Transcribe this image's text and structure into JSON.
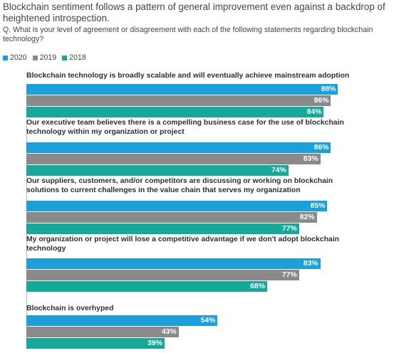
{
  "colors": {
    "2020": "#1ba0db",
    "2019": "#8a8a8a",
    "2018": "#16a99a"
  },
  "chart_data": {
    "type": "bar",
    "orientation": "horizontal",
    "title": "Blockchain sentiment follows a pattern of general improvement even against a backdrop of heightened introspection.",
    "subtitle": "Q. What is your level of agreement or disagreement with each of the following statements regarding blockchain technology?",
    "legend_position": "top-left",
    "unit": "%",
    "xlim": [
      0,
      100
    ],
    "categories": [
      "Blockchain technology is broadly scalable and will eventually achieve mainstream adoption",
      "Our executive team believes there is a compelling business case for the use of blockchain technology within my organization or project",
      "Our suppliers, customers, and/or competitors are discussing or working on blockchain solutions to current challenges in the value chain that serves my organization",
      "My organization or project will lose a competitive advantage if we don't adopt blockchain technology",
      "Blockchain is overhyped"
    ],
    "series": [
      {
        "name": "2020",
        "values": [
          88,
          86,
          85,
          83,
          54
        ]
      },
      {
        "name": "2019",
        "values": [
          86,
          83,
          82,
          77,
          43
        ]
      },
      {
        "name": "2018",
        "values": [
          84,
          74,
          77,
          68,
          39
        ]
      }
    ]
  }
}
